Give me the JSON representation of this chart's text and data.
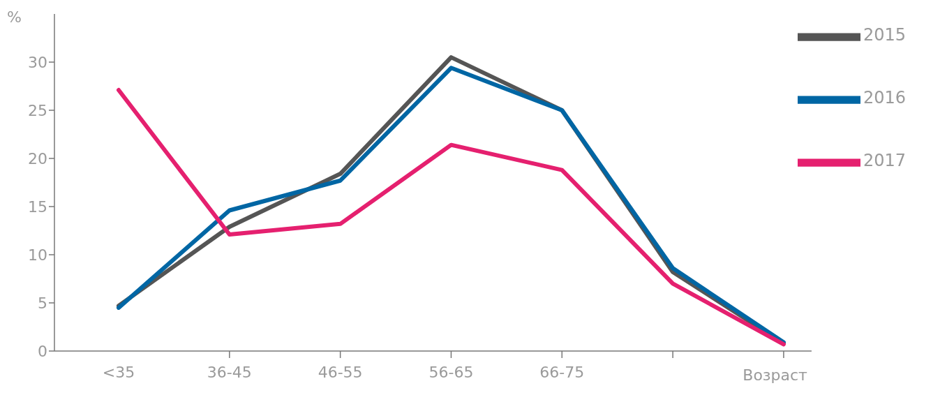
{
  "chart_data": {
    "type": "line",
    "xlabel": "Возраст",
    "ylabel": "%",
    "categories": [
      "<35",
      "36-45",
      "46-55",
      "56-65",
      "66-75",
      null,
      null
    ],
    "ylim": [
      0,
      35
    ],
    "yticks": [
      0,
      5,
      10,
      15,
      20,
      25,
      30
    ],
    "series": [
      {
        "name": "2017",
        "color": "#e5206f",
        "values": [
          27.1,
          12.1,
          13.2,
          21.4,
          18.8,
          7.0,
          0.7
        ]
      },
      {
        "name": "2016",
        "color": "#0066a4",
        "values": [
          4.5,
          14.6,
          17.7,
          29.4,
          25.0,
          8.6,
          0.9
        ]
      },
      {
        "name": "2015",
        "color": "#555555",
        "values": [
          4.7,
          12.9,
          18.4,
          30.5,
          25.0,
          8.2,
          0.8
        ]
      }
    ],
    "grid": false,
    "legend": "top right",
    "marker": "none",
    "line_style": "solid"
  }
}
